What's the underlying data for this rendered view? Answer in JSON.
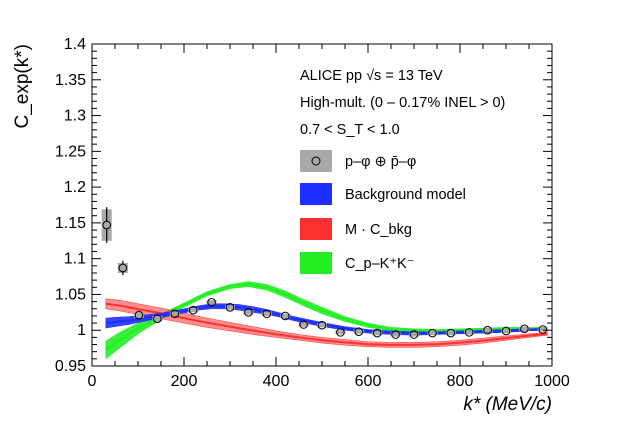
{
  "chart_data": {
    "type": "scatter",
    "title": "",
    "xlabel": "k* (MeV/c)",
    "ylabel": "C_exp(k*)",
    "xlim": [
      0,
      1000
    ],
    "ylim": [
      0.95,
      1.4
    ],
    "x_ticks": [
      0,
      200,
      400,
      600,
      800,
      1000
    ],
    "x_tick_labels": [
      "0",
      "200",
      "400",
      "600",
      "800",
      "1000"
    ],
    "y_ticks": [
      0.95,
      1.0,
      1.05,
      1.1,
      1.15,
      1.2,
      1.25,
      1.3,
      1.35,
      1.4
    ],
    "y_tick_labels": [
      "0.95",
      "1",
      "1.05",
      "1.1",
      "1.15",
      "1.2",
      "1.25",
      "1.3",
      "1.35",
      "1.4"
    ],
    "annotations": {
      "line1": "ALICE pp √s = 13 TeV",
      "line2": "High-mult. (0 – 0.17% INEL > 0)",
      "line3": "0.7 < S_T < 1.0"
    },
    "legend": {
      "placement": "top-right",
      "entries": [
        {
          "label": "p–φ ⊕ p̄–φ",
          "kind": "data"
        },
        {
          "label": "Background model",
          "kind": "band",
          "color": "#1f2fff"
        },
        {
          "label": "M · C_bkg",
          "kind": "band",
          "color": "#ff3030"
        },
        {
          "label": "C_p–K⁺K⁻",
          "kind": "band",
          "color": "#22ee22"
        }
      ]
    },
    "series": [
      {
        "name": "p–φ ⊕ p̄–φ",
        "color": "#000000",
        "x": [
          32,
          67,
          102,
          142,
          180,
          220,
          260,
          300,
          340,
          380,
          420,
          460,
          500,
          540,
          580,
          620,
          660,
          700,
          740,
          780,
          820,
          860,
          900,
          940,
          980
        ],
        "y": [
          1.147,
          1.087,
          1.021,
          1.016,
          1.023,
          1.028,
          1.039,
          1.032,
          1.025,
          1.023,
          1.02,
          1.008,
          1.007,
          0.997,
          0.998,
          0.996,
          0.994,
          0.994,
          0.996,
          0.996,
          0.997,
          1.0,
          0.999,
          1.002,
          1.001
        ],
        "stat": [
          0.025,
          0.01,
          0.006,
          0.005,
          0.004,
          0.004,
          0.004,
          0.004,
          0.003,
          0.003,
          0.003,
          0.003,
          0.003,
          0.003,
          0.003,
          0.003,
          0.003,
          0.003,
          0.003,
          0.003,
          0.003,
          0.003,
          0.003,
          0.003,
          0.003
        ],
        "syst": [
          0.022,
          0.007,
          0.004,
          0.004,
          0.003,
          0.003,
          0.003,
          0.003,
          0.003,
          0.003,
          0.003,
          0.003,
          0.003,
          0.003,
          0.003,
          0.003,
          0.003,
          0.003,
          0.003,
          0.003,
          0.003,
          0.003,
          0.003,
          0.003,
          0.003
        ]
      },
      {
        "name": "Background model",
        "color": "#1f2fff",
        "x": [
          30,
          50,
          80,
          110,
          140,
          170,
          200,
          230,
          260,
          290,
          320,
          350,
          380,
          410,
          440,
          470,
          500,
          550,
          600,
          650,
          700,
          750,
          800,
          850,
          900,
          950,
          990
        ],
        "lo": [
          1.003,
          1.005,
          1.008,
          1.012,
          1.016,
          1.02,
          1.024,
          1.028,
          1.03,
          1.03,
          1.028,
          1.025,
          1.022,
          1.018,
          1.013,
          1.009,
          1.005,
          1.0,
          0.996,
          0.994,
          0.993,
          0.994,
          0.995,
          0.996,
          0.997,
          0.999,
          1.0
        ],
        "hi": [
          1.017,
          1.018,
          1.019,
          1.021,
          1.023,
          1.026,
          1.03,
          1.034,
          1.037,
          1.037,
          1.036,
          1.033,
          1.029,
          1.024,
          1.019,
          1.015,
          1.011,
          1.005,
          1.001,
          0.999,
          0.998,
          0.998,
          0.999,
          1.0,
          1.001,
          1.002,
          1.003
        ]
      },
      {
        "name": "M · C_bkg",
        "color": "#ff3030",
        "x": [
          30,
          60,
          100,
          150,
          200,
          250,
          300,
          350,
          400,
          450,
          500,
          550,
          600,
          650,
          700,
          750,
          800,
          850,
          900,
          950,
          990
        ],
        "lo": [
          1.03,
          1.027,
          1.022,
          1.016,
          1.01,
          1.004,
          0.999,
          0.994,
          0.99,
          0.986,
          0.982,
          0.979,
          0.977,
          0.976,
          0.976,
          0.977,
          0.979,
          0.982,
          0.986,
          0.99,
          0.993
        ],
        "hi": [
          1.044,
          1.042,
          1.037,
          1.031,
          1.024,
          1.017,
          1.011,
          1.005,
          0.999,
          0.994,
          0.99,
          0.987,
          0.984,
          0.983,
          0.983,
          0.984,
          0.986,
          0.989,
          0.992,
          0.995,
          0.997
        ]
      },
      {
        "name": "C_p–K⁺K⁻",
        "color": "#22ee22",
        "x": [
          30,
          60,
          100,
          150,
          200,
          250,
          300,
          340,
          380,
          420,
          460,
          500,
          550,
          600,
          650,
          700,
          750,
          800,
          850,
          900,
          950,
          990
        ],
        "lo": [
          0.96,
          0.975,
          0.995,
          1.015,
          1.032,
          1.048,
          1.058,
          1.061,
          1.056,
          1.046,
          1.034,
          1.023,
          1.012,
          1.004,
          0.999,
          0.997,
          0.997,
          0.998,
          0.999,
          1.0,
          1.0,
          1.0
        ],
        "hi": [
          0.985,
          0.997,
          1.01,
          1.023,
          1.038,
          1.054,
          1.064,
          1.068,
          1.064,
          1.055,
          1.043,
          1.032,
          1.019,
          1.01,
          1.004,
          1.002,
          1.001,
          1.002,
          1.003,
          1.004,
          1.004,
          1.004
        ]
      }
    ]
  }
}
